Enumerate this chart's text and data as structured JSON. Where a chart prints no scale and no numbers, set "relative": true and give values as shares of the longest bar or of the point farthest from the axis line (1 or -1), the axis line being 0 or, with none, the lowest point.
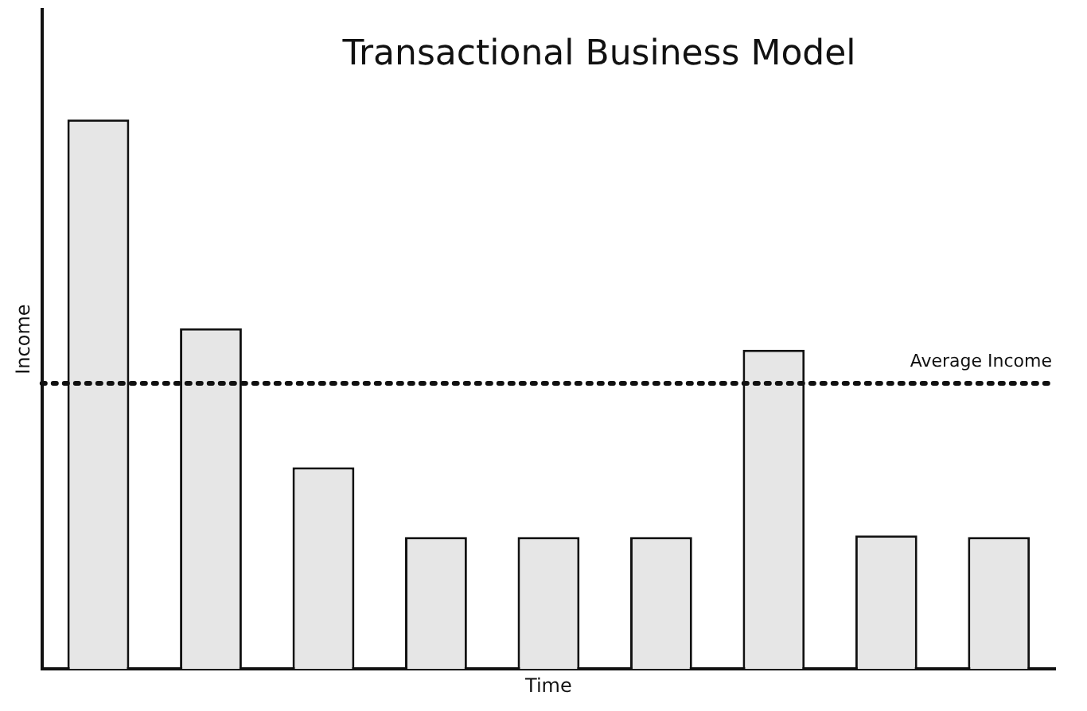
{
  "chart_data": {
    "type": "bar",
    "title": "Transactional Business Model",
    "xlabel": "Time",
    "ylabel": "Income",
    "relative": true,
    "categories": [
      null,
      null,
      null,
      null,
      null,
      null,
      null,
      null,
      null
    ],
    "values": [
      1,
      0.62,
      0.367,
      0.24,
      0.24,
      0.24,
      0.581,
      0.243,
      0.24
    ],
    "color": "#e6e6e6",
    "ref_lines": [
      {
        "axis": "y",
        "value": 0.52,
        "label": "Average Income",
        "line_style": "dotted",
        "color": "#111111"
      }
    ],
    "grid": false,
    "legend": false
  }
}
